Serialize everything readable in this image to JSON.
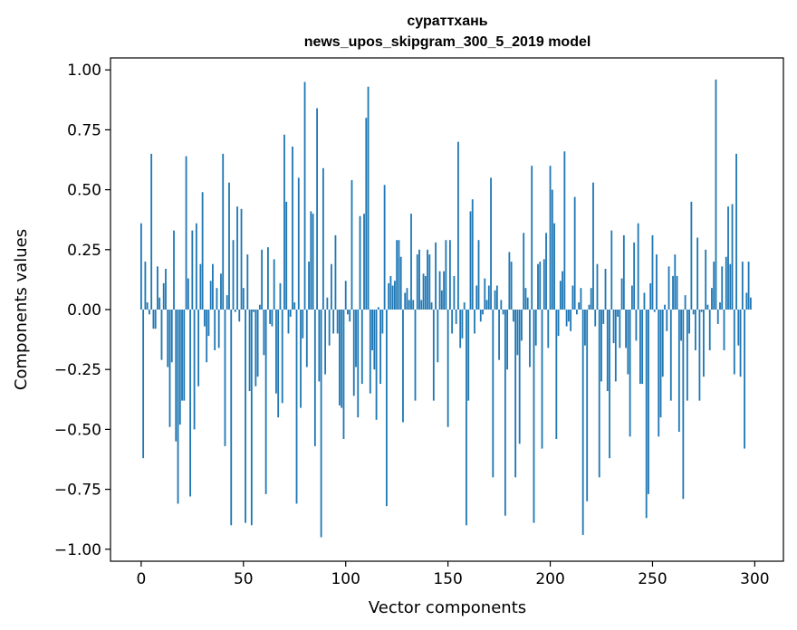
{
  "chart_data": {
    "type": "bar",
    "title_line1": "сураттхань",
    "title_line2": "news_upos_skipgram_300_5_2019 model",
    "xlabel": "Vector components",
    "ylabel": "Components values",
    "xlim": [
      -15,
      314
    ],
    "ylim": [
      -1.05,
      1.05
    ],
    "x_ticks": [
      0,
      50,
      100,
      150,
      200,
      250,
      300
    ],
    "x_tick_labels": [
      "0",
      "50",
      "100",
      "150",
      "200",
      "250",
      "300"
    ],
    "y_ticks": [
      1.0,
      0.75,
      0.5,
      0.25,
      0.0,
      -0.25,
      -0.5,
      -0.75,
      -1.0
    ],
    "y_tick_labels": [
      "1.00",
      "0.75",
      "0.50",
      "0.25",
      "0.00",
      "−0.25",
      "−0.50",
      "−0.75",
      "−1.00"
    ],
    "bar_color": "#1f77b4",
    "grid": false,
    "values": [
      0.36,
      -0.62,
      0.2,
      0.03,
      -0.02,
      0.65,
      -0.08,
      -0.08,
      0.18,
      0.05,
      -0.21,
      0.11,
      0.17,
      -0.24,
      -0.49,
      -0.22,
      0.33,
      -0.55,
      -0.81,
      -0.48,
      -0.38,
      -0.38,
      0.64,
      0.13,
      -0.78,
      0.33,
      -0.5,
      0.36,
      -0.32,
      0.19,
      0.49,
      -0.07,
      -0.22,
      -0.11,
      0.12,
      0.19,
      -0.17,
      0.09,
      -0.16,
      0.15,
      0.65,
      -0.57,
      0.06,
      0.53,
      -0.9,
      0.29,
      -0.01,
      0.43,
      -0.05,
      0.42,
      0.09,
      -0.89,
      0.23,
      -0.34,
      -0.9,
      -0.01,
      -0.32,
      -0.28,
      0.02,
      0.25,
      -0.19,
      -0.77,
      0.26,
      -0.06,
      -0.07,
      0.21,
      -0.35,
      -0.45,
      0.11,
      -0.39,
      0.73,
      0.45,
      -0.1,
      -0.03,
      0.68,
      0.03,
      -0.81,
      0.55,
      -0.41,
      -0.12,
      0.95,
      -0.24,
      0.2,
      0.41,
      0.4,
      -0.57,
      0.84,
      -0.3,
      -0.95,
      0.59,
      -0.27,
      0.05,
      -0.15,
      0.19,
      -0.1,
      0.31,
      -0.1,
      -0.4,
      -0.41,
      -0.54,
      0.12,
      -0.02,
      -0.05,
      0.54,
      -0.36,
      -0.24,
      -0.45,
      0.39,
      -0.31,
      0.4,
      0.8,
      0.93,
      -0.35,
      -0.17,
      -0.25,
      -0.46,
      0.01,
      -0.31,
      -0.1,
      0.52,
      -0.82,
      0.11,
      0.14,
      0.1,
      0.12,
      0.29,
      0.29,
      0.22,
      -0.47,
      0.07,
      0.09,
      0.04,
      0.4,
      0.04,
      -0.38,
      0.23,
      0.25,
      0.04,
      0.15,
      0.14,
      0.25,
      0.23,
      0.03,
      -0.38,
      0.28,
      -0.22,
      0.16,
      0.08,
      0.16,
      0.29,
      -0.49,
      0.29,
      -0.1,
      0.14,
      -0.06,
      0.7,
      -0.16,
      -0.12,
      0.03,
      -0.9,
      -0.38,
      0.41,
      0.46,
      -0.1,
      0.1,
      0.29,
      -0.05,
      -0.02,
      0.13,
      0.04,
      0.1,
      0.55,
      -0.7,
      0.08,
      0.1,
      -0.21,
      0.04,
      -0.02,
      -0.86,
      -0.25,
      0.24,
      0.2,
      -0.05,
      -0.7,
      -0.19,
      -0.56,
      -0.13,
      0.32,
      0.09,
      0.05,
      -0.24,
      0.6,
      -0.89,
      -0.15,
      0.19,
      0.2,
      -0.58,
      0.21,
      0.32,
      -0.16,
      0.6,
      0.5,
      0.36,
      -0.54,
      -0.11,
      0.12,
      0.16,
      0.66,
      -0.07,
      -0.05,
      -0.09,
      0.1,
      0.47,
      -0.02,
      0.03,
      0.09,
      -0.94,
      -0.15,
      -0.8,
      0.02,
      0.09,
      0.53,
      -0.07,
      0.19,
      -0.7,
      -0.3,
      -0.06,
      0.17,
      -0.34,
      -0.62,
      0.33,
      -0.14,
      -0.3,
      -0.03,
      -0.16,
      0.13,
      0.31,
      -0.16,
      -0.27,
      -0.53,
      0.1,
      0.28,
      -0.13,
      0.36,
      -0.31,
      -0.31,
      0.07,
      -0.87,
      -0.77,
      0.11,
      0.31,
      -0.01,
      0.23,
      -0.53,
      -0.45,
      -0.28,
      0.02,
      -0.09,
      0.18,
      -0.38,
      0.14,
      0.23,
      0.14,
      -0.51,
      -0.13,
      -0.79,
      0.06,
      -0.38,
      -0.1,
      0.45,
      -0.02,
      -0.17,
      0.3,
      -0.38,
      -0.01,
      -0.28,
      0.25,
      0.02,
      -0.17,
      0.09,
      0.2,
      0.96,
      -0.06,
      0.03,
      0.18,
      -0.17,
      0.22,
      0.43,
      0.19,
      0.44,
      -0.27,
      0.65,
      -0.15,
      -0.28,
      0.2,
      -0.58,
      0.07,
      0.2,
      0.05
    ]
  }
}
